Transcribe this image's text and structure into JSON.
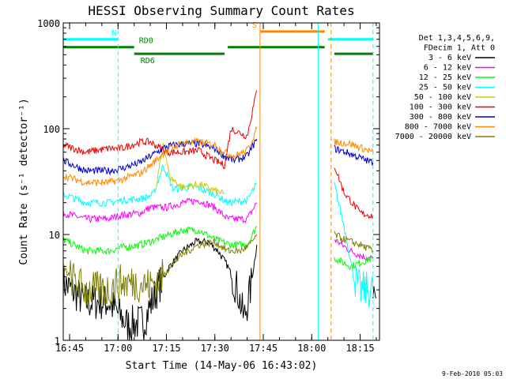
{
  "chart_data": {
    "type": "line",
    "title": "HESSI Observing Summary Count Rates",
    "xlabel": "Start Time (14-May-06 16:43:02)",
    "ylabel": "Count Rate (s⁻¹ detector⁻¹)",
    "y_scale": "log",
    "ylim": [
      1,
      1000
    ],
    "xlim": [
      "16:43:02",
      "18:21:00"
    ],
    "x_ticks": [
      "16:45",
      "17:00",
      "17:15",
      "17:30",
      "17:45",
      "18:00",
      "18:15"
    ],
    "y_ticks": [
      "1",
      "10",
      "100",
      "1000"
    ],
    "footer_date": "9-Feb-2010 05:03",
    "legend": {
      "position": "right",
      "header": [
        "Det 1,3,4,5,6,9,",
        "FDecim 1, Att 0"
      ],
      "entries": [
        {
          "label": "3 - 6 keV",
          "color": "#000000"
        },
        {
          "label": "6 - 12 keV",
          "color": "#ff00ff"
        },
        {
          "label": "12 - 25 keV",
          "color": "#00ff00"
        },
        {
          "label": "25 - 50 keV",
          "color": "#00ffff"
        },
        {
          "label": "50 - 100 keV",
          "color": "#cccc00"
        },
        {
          "label": "100 - 300 keV",
          "color": "#ee0000"
        },
        {
          "label": "300 - 800 keV",
          "color": "#0000cc"
        },
        {
          "label": "800 - 7000 keV",
          "color": "#ff8800"
        },
        {
          "label": "7000 - 20000 keV",
          "color": "#808000"
        }
      ]
    },
    "flags": [
      {
        "label": "N",
        "color": "#00ffff",
        "level": 700,
        "segments": [
          [
            "16:43",
            "17:00"
          ],
          [
            "18:05",
            "18:19"
          ]
        ]
      },
      {
        "label": "S",
        "color": "#ff8800",
        "level": 830,
        "segments": [
          [
            "17:44",
            "18:04"
          ]
        ]
      },
      {
        "label": "RD0",
        "color": "#008000",
        "level": 590,
        "segments": [
          [
            "16:43",
            "17:05"
          ],
          [
            "17:34",
            "18:04"
          ]
        ]
      },
      {
        "label": "RD6",
        "color": "#008000",
        "level": 510,
        "segments": [
          [
            "17:05",
            "17:33"
          ],
          [
            "18:07",
            "18:19"
          ]
        ]
      }
    ],
    "markers": [
      {
        "time": "17:00",
        "color": "#00ffff",
        "style": "dashed"
      },
      {
        "time": "17:44",
        "color": "#ff8800",
        "style": "solid"
      },
      {
        "time": "18:02",
        "color": "#00ffff",
        "style": "solid"
      },
      {
        "time": "18:06",
        "color": "#ff8800",
        "style": "dashed"
      },
      {
        "time": "18:19",
        "color": "#00ffff",
        "style": "dashed"
      }
    ],
    "series": [
      {
        "name": "3 - 6 keV",
        "color": "#000000",
        "points": [
          [
            "16:43",
            3.5
          ],
          [
            "16:50",
            2.3
          ],
          [
            "16:57",
            2.3
          ],
          [
            "17:03",
            1.4
          ],
          [
            "17:08",
            1.5
          ],
          [
            "17:12",
            3
          ],
          [
            "17:16",
            5
          ],
          [
            "17:20",
            7
          ],
          [
            "17:24",
            8.5
          ],
          [
            "17:28",
            8.5
          ],
          [
            "17:31",
            7
          ],
          [
            "17:34",
            5
          ],
          [
            "17:37",
            3
          ],
          [
            "17:39",
            1.6
          ],
          [
            "17:41",
            3
          ],
          [
            "17:43",
            8
          ],
          null,
          [
            "18:19",
            3
          ],
          [
            "18:20",
            2.5
          ]
        ]
      },
      {
        "name": "6 - 12 keV",
        "color": "#ff00ff",
        "points": [
          [
            "16:43",
            16
          ],
          [
            "16:50",
            14
          ],
          [
            "16:57",
            14
          ],
          [
            "17:00",
            15
          ],
          [
            "17:07",
            16
          ],
          [
            "17:10",
            18
          ],
          [
            "17:15",
            18
          ],
          [
            "17:20",
            20
          ],
          [
            "17:25",
            21
          ],
          [
            "17:30",
            18
          ],
          [
            "17:34",
            14
          ],
          [
            "17:40",
            14
          ],
          [
            "17:43",
            20
          ],
          null,
          [
            "18:07",
            9
          ],
          [
            "18:12",
            7
          ],
          [
            "18:17",
            6
          ],
          [
            "18:19",
            6
          ]
        ]
      },
      {
        "name": "12 - 25 keV",
        "color": "#00ff00",
        "points": [
          [
            "16:43",
            9
          ],
          [
            "16:50",
            7
          ],
          [
            "16:57",
            7
          ],
          [
            "17:01",
            7.5
          ],
          [
            "17:07",
            8
          ],
          [
            "17:12",
            9
          ],
          [
            "17:16",
            10
          ],
          [
            "17:20",
            11
          ],
          [
            "17:25",
            11
          ],
          [
            "17:30",
            9
          ],
          [
            "17:35",
            8
          ],
          [
            "17:40",
            8
          ],
          [
            "17:43",
            12
          ],
          null,
          [
            "18:07",
            6
          ],
          [
            "18:12",
            5
          ],
          [
            "18:19",
            6
          ]
        ]
      },
      {
        "name": "25 - 50 keV",
        "color": "#00ffff",
        "points": [
          [
            "16:43",
            24
          ],
          [
            "16:50",
            20
          ],
          [
            "16:57",
            20
          ],
          [
            "17:01",
            21
          ],
          [
            "17:08",
            22
          ],
          [
            "17:11",
            24
          ],
          [
            "17:14",
            45
          ],
          [
            "17:17",
            27
          ],
          [
            "17:24",
            28
          ],
          [
            "17:30",
            24
          ],
          [
            "17:34",
            20
          ],
          [
            "17:40",
            21
          ],
          [
            "17:43",
            30
          ],
          null,
          [
            "18:07",
            30
          ],
          [
            "18:10",
            12
          ],
          [
            "18:13",
            4
          ],
          [
            "18:15",
            3
          ],
          [
            "18:19",
            3
          ]
        ]
      },
      {
        "name": "50 - 100 keV",
        "color": "#cccc00",
        "points": [
          [
            "17:12",
            30
          ],
          [
            "17:14",
            75
          ],
          [
            "17:16",
            35
          ],
          [
            "17:20",
            28
          ],
          [
            "17:25",
            30
          ],
          [
            "17:30",
            26
          ],
          [
            "17:33",
            24
          ]
        ]
      },
      {
        "name": "100 - 300 keV",
        "color": "#ee0000",
        "points": [
          [
            "16:43",
            70
          ],
          [
            "16:50",
            60
          ],
          [
            "16:57",
            65
          ],
          [
            "17:01",
            65
          ],
          [
            "17:07",
            75
          ],
          [
            "17:10",
            75
          ],
          [
            "17:15",
            60
          ],
          [
            "17:20",
            60
          ],
          [
            "17:25",
            62
          ],
          [
            "17:30",
            50
          ],
          [
            "17:33",
            45
          ],
          [
            "17:35",
            100
          ],
          [
            "17:40",
            85
          ],
          [
            "17:43",
            230
          ],
          null,
          [
            "18:07",
            45
          ],
          [
            "18:10",
            25
          ],
          [
            "18:15",
            16
          ],
          [
            "18:19",
            15
          ]
        ]
      },
      {
        "name": "300 - 800 keV",
        "color": "#0000cc",
        "points": [
          [
            "16:43",
            50
          ],
          [
            "16:50",
            40
          ],
          [
            "16:57",
            40
          ],
          [
            "17:01",
            42
          ],
          [
            "17:07",
            48
          ],
          [
            "17:10",
            55
          ],
          [
            "17:15",
            68
          ],
          [
            "17:20",
            72
          ],
          [
            "17:25",
            72
          ],
          [
            "17:30",
            65
          ],
          [
            "17:33",
            55
          ],
          [
            "17:36",
            50
          ],
          [
            "17:40",
            55
          ],
          [
            "17:43",
            80
          ],
          null,
          [
            "18:07",
            65
          ],
          [
            "18:12",
            58
          ],
          [
            "18:17",
            50
          ],
          [
            "18:19",
            48
          ]
        ]
      },
      {
        "name": "800 - 7000 keV",
        "color": "#ff8800",
        "points": [
          [
            "16:43",
            36
          ],
          [
            "16:50",
            31
          ],
          [
            "16:57",
            31
          ],
          [
            "17:01",
            33
          ],
          [
            "17:07",
            38
          ],
          [
            "17:10",
            45
          ],
          [
            "17:15",
            62
          ],
          [
            "17:20",
            74
          ],
          [
            "17:25",
            75
          ],
          [
            "17:30",
            70
          ],
          [
            "17:33",
            60
          ],
          [
            "17:36",
            55
          ],
          [
            "17:40",
            62
          ],
          [
            "17:43",
            100
          ],
          null,
          [
            "18:07",
            75
          ],
          [
            "18:12",
            72
          ],
          [
            "18:17",
            63
          ],
          [
            "18:19",
            60
          ]
        ]
      },
      {
        "name": "7000 - 20000 keV",
        "color": "#808000",
        "points": [
          [
            "16:43",
            5
          ],
          [
            "16:45",
            4
          ],
          [
            "16:50",
            3
          ],
          [
            "16:57",
            3
          ],
          [
            "17:00",
            3.5
          ],
          [
            "17:05",
            3.5
          ],
          [
            "17:10",
            3.3
          ],
          [
            "17:14",
            4
          ],
          [
            "17:16",
            5
          ],
          [
            "17:20",
            6.5
          ],
          [
            "17:25",
            8
          ],
          [
            "17:30",
            8.5
          ],
          [
            "17:34",
            7
          ],
          [
            "17:38",
            7
          ],
          [
            "17:41",
            8
          ],
          [
            "17:43",
            10
          ],
          null,
          [
            "18:07",
            10
          ],
          [
            "18:10",
            9
          ],
          [
            "18:15",
            8
          ],
          [
            "18:19",
            7
          ]
        ]
      }
    ]
  }
}
